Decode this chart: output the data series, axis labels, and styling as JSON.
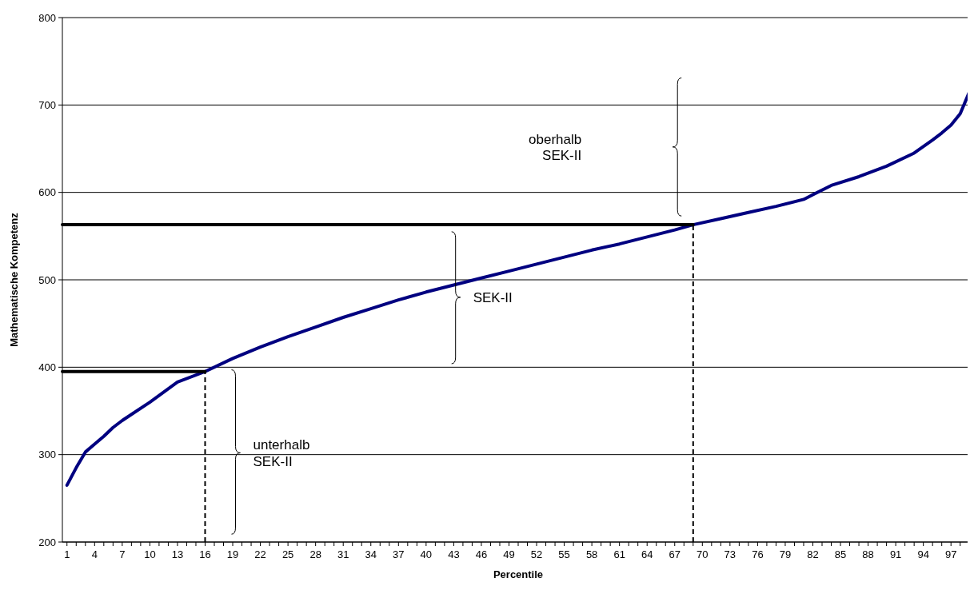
{
  "chart_data": {
    "type": "line",
    "xlabel": "Percentile",
    "ylabel": "Mathematische Kompetenz",
    "xlim": [
      0.5,
      99.5
    ],
    "ylim": [
      200,
      800
    ],
    "yticks": [
      200,
      300,
      400,
      500,
      600,
      700,
      800
    ],
    "xticks": [
      1,
      {
        "value": 2,
        "label": null
      },
      {
        "value": 3,
        "label": null
      },
      4,
      {
        "value": 5,
        "label": null
      },
      {
        "value": 6,
        "label": null
      },
      7,
      {
        "value": 8,
        "label": null
      },
      {
        "value": 9,
        "label": null
      },
      10,
      {
        "value": 11,
        "label": null
      },
      {
        "value": 12,
        "label": null
      },
      13,
      {
        "value": 14,
        "label": null
      },
      {
        "value": 15,
        "label": null
      },
      16,
      {
        "value": 17,
        "label": null
      },
      {
        "value": 18,
        "label": null
      },
      19,
      {
        "value": 20,
        "label": null
      },
      {
        "value": 21,
        "label": null
      },
      22,
      {
        "value": 23,
        "label": null
      },
      {
        "value": 24,
        "label": null
      },
      25,
      {
        "value": 26,
        "label": null
      },
      {
        "value": 27,
        "label": null
      },
      28,
      {
        "value": 29,
        "label": null
      },
      {
        "value": 30,
        "label": null
      },
      31,
      {
        "value": 32,
        "label": null
      },
      {
        "value": 33,
        "label": null
      },
      34,
      {
        "value": 35,
        "label": null
      },
      {
        "value": 36,
        "label": null
      },
      37,
      {
        "value": 38,
        "label": null
      },
      {
        "value": 39,
        "label": null
      },
      40,
      {
        "value": 41,
        "label": null
      },
      {
        "value": 42,
        "label": null
      },
      43,
      {
        "value": 44,
        "label": null
      },
      {
        "value": 45,
        "label": null
      },
      46,
      {
        "value": 47,
        "label": null
      },
      {
        "value": 48,
        "label": null
      },
      49,
      {
        "value": 50,
        "label": null
      },
      {
        "value": 51,
        "label": null
      },
      52,
      {
        "value": 53,
        "label": null
      },
      {
        "value": 54,
        "label": null
      },
      55,
      {
        "value": 56,
        "label": null
      },
      {
        "value": 57,
        "label": null
      },
      58,
      {
        "value": 59,
        "label": null
      },
      {
        "value": 60,
        "label": null
      },
      61,
      {
        "value": 62,
        "label": null
      },
      {
        "value": 63,
        "label": null
      },
      64,
      {
        "value": 65,
        "label": null
      },
      {
        "value": 66,
        "label": null
      },
      67,
      {
        "value": 68,
        "label": null
      },
      {
        "value": 69,
        "label": null
      },
      70,
      {
        "value": 71,
        "label": null
      },
      {
        "value": 72,
        "label": null
      },
      73,
      {
        "value": 74,
        "label": null
      },
      {
        "value": 75,
        "label": null
      },
      76,
      {
        "value": 77,
        "label": null
      },
      {
        "value": 78,
        "label": null
      },
      79,
      {
        "value": 80,
        "label": null
      },
      {
        "value": 81,
        "label": null
      },
      82,
      {
        "value": 83,
        "label": null
      },
      {
        "value": 84,
        "label": null
      },
      85,
      {
        "value": 86,
        "label": null
      },
      {
        "value": 87,
        "label": null
      },
      88,
      {
        "value": 89,
        "label": null
      },
      {
        "value": 90,
        "label": null
      },
      91,
      {
        "value": 92,
        "label": null
      },
      {
        "value": 93,
        "label": null
      },
      94,
      {
        "value": 95,
        "label": null
      },
      {
        "value": 96,
        "label": null
      },
      97,
      {
        "value": 98,
        "label": null
      },
      {
        "value": 99,
        "label": null
      }
    ],
    "grid": "y",
    "series": [
      {
        "color": "#000080",
        "line_style": "solid",
        "x": [
          1,
          2,
          3,
          4,
          5,
          6,
          7,
          10,
          13,
          16,
          19,
          22,
          25,
          28,
          31,
          34,
          37,
          40,
          43,
          46,
          49,
          52,
          55,
          58,
          61,
          64,
          67,
          69,
          72,
          75,
          78,
          81,
          84,
          87,
          90,
          93,
          95,
          96,
          97,
          98,
          99
        ],
        "values": [
          265,
          285,
          303,
          312,
          321,
          331,
          339,
          360,
          383,
          395,
          410,
          423,
          435,
          446,
          457,
          467,
          477,
          486,
          494,
          502,
          510,
          518,
          526,
          534,
          541,
          549,
          557,
          563,
          570,
          577,
          584,
          592,
          608,
          618,
          630,
          645,
          660,
          668,
          677,
          690,
          715
        ]
      },
      {
        "color": "#000000",
        "line_style": "solid",
        "x": [
          0.5,
          16
        ],
        "values": [
          395,
          395
        ]
      },
      {
        "color": "#000000",
        "line_style": "solid",
        "x": [
          0.5,
          69
        ],
        "values": [
          563,
          563
        ]
      },
      {
        "color": "#000000",
        "line_style": "dashed",
        "x": [
          16,
          16
        ],
        "values": [
          200,
          395
        ]
      },
      {
        "color": "#000000",
        "line_style": "dashed",
        "x": [
          69,
          69
        ],
        "values": [
          200,
          563
        ]
      }
    ],
    "annotations": [
      "oberhalb\nSEK-II",
      "SEK-II",
      "unterhalb\nSEK-II"
    ]
  }
}
